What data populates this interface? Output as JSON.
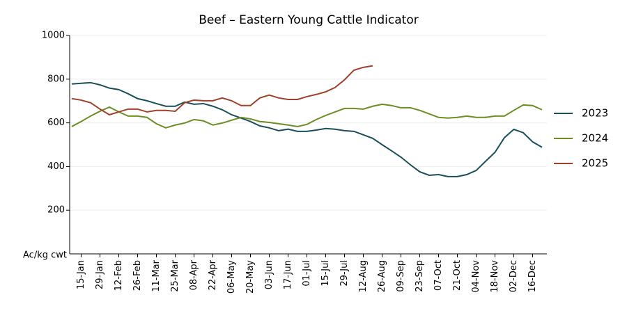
{
  "chart_data": {
    "type": "line",
    "title": "Beef – Eastern Young Cattle Indicator",
    "y_label": "Ac/kg cwt",
    "categories": [
      null,
      "15-Jan",
      null,
      "29-Jan",
      null,
      "12-Feb",
      null,
      "26-Feb",
      null,
      "11-Mar",
      null,
      "25-Mar",
      null,
      "08-Apr",
      null,
      "22-Apr",
      null,
      "06-May",
      null,
      "20-May",
      null,
      "03-Jun",
      null,
      "17-Jun",
      null,
      "01-Jul",
      null,
      "15-Jul",
      null,
      "29-Jul",
      null,
      "12-Aug",
      null,
      "26-Aug",
      null,
      "09-Sep",
      null,
      "23-Sep",
      null,
      "07-Oct",
      null,
      "21-Oct",
      null,
      "04-Nov",
      null,
      "18-Nov",
      null,
      "02-Dec",
      null,
      "16-Dec",
      null
    ],
    "series": [
      {
        "name": "2023",
        "color": "#1a4f58",
        "values": [
          778,
          781,
          784,
          774,
          759,
          752,
          733,
          711,
          701,
          688,
          676,
          676,
          695,
          685,
          688,
          676,
          660,
          637,
          622,
          606,
          586,
          577,
          564,
          571,
          561,
          561,
          567,
          574,
          571,
          564,
          561,
          545,
          529,
          500,
          472,
          443,
          408,
          376,
          360,
          363,
          354,
          354,
          363,
          382,
          424,
          465,
          532,
          570,
          555,
          513,
          488
        ]
      },
      {
        "name": "2024",
        "color": "#6b8e23",
        "values": [
          583,
          606,
          631,
          653,
          672,
          650,
          631,
          631,
          625,
          596,
          577,
          590,
          599,
          615,
          609,
          590,
          599,
          612,
          625,
          618,
          606,
          602,
          596,
          590,
          583,
          593,
          615,
          634,
          650,
          666,
          666,
          663,
          676,
          685,
          679,
          669,
          669,
          657,
          641,
          625,
          622,
          625,
          631,
          625,
          625,
          631,
          631,
          657,
          682,
          679,
          660
        ]
      },
      {
        "name": "2025",
        "color": "#a0402a",
        "values": [
          711,
          704,
          692,
          663,
          637,
          650,
          663,
          663,
          650,
          657,
          657,
          653,
          692,
          704,
          701,
          701,
          714,
          701,
          679,
          679,
          714,
          727,
          714,
          707,
          707,
          720,
          730,
          742,
          762,
          797,
          841,
          854,
          861,
          null,
          null,
          null,
          null,
          null,
          null,
          null,
          null,
          null,
          null,
          null,
          null,
          null,
          null,
          null,
          null,
          null,
          null
        ]
      }
    ],
    "ylim": [
      0,
      1000
    ],
    "yticks": [
      200,
      400,
      600,
      800,
      1000
    ],
    "grid": true,
    "legend": "right"
  }
}
